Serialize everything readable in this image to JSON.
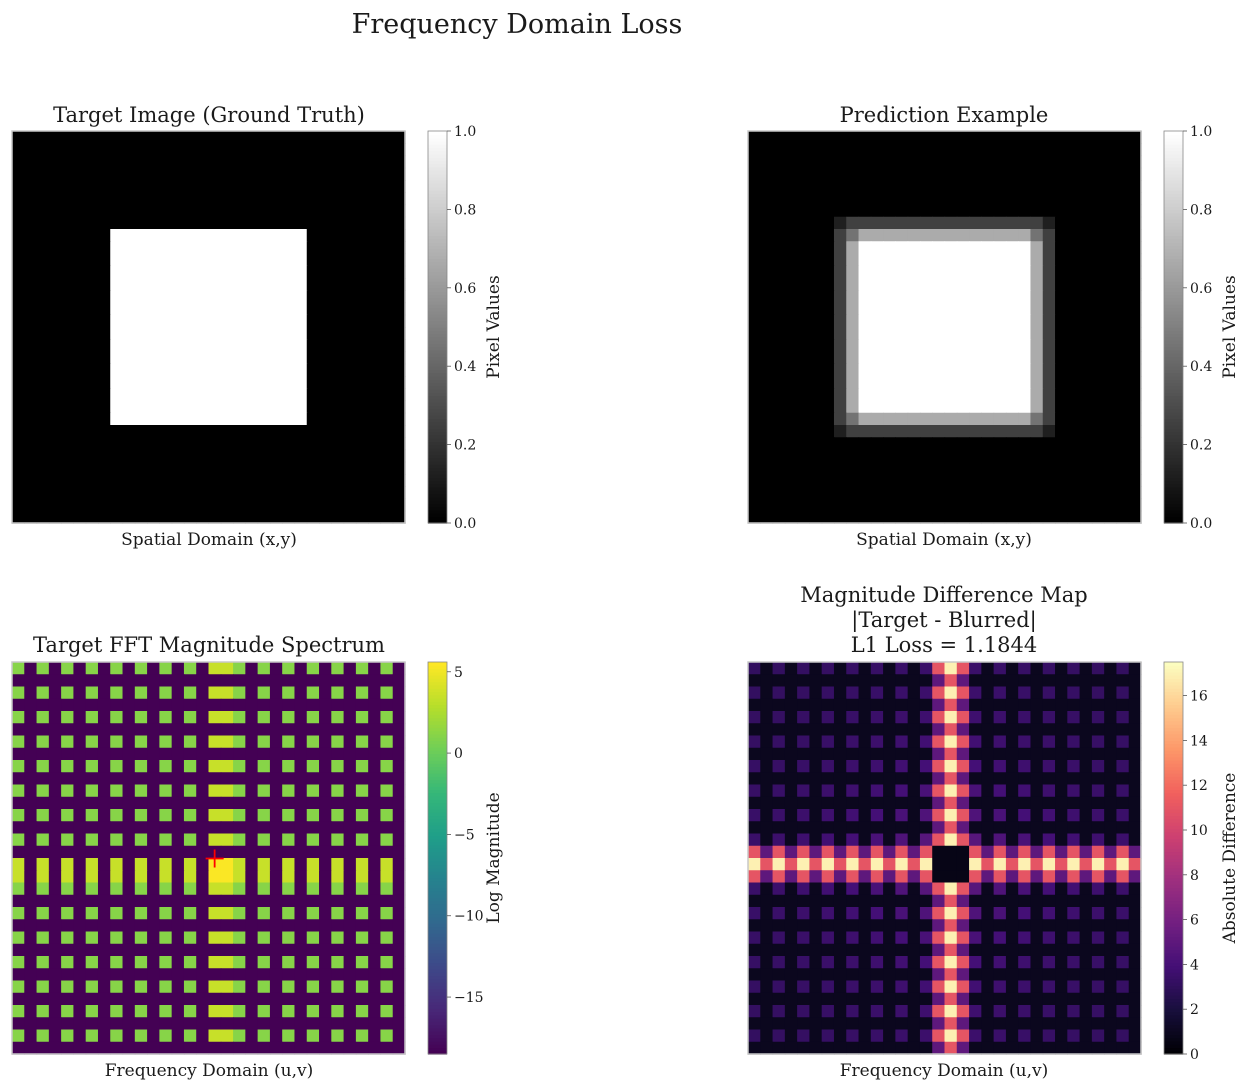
{
  "figure": {
    "title": "Frequency Domain Loss"
  },
  "chart_data": [
    {
      "type": "heatmap",
      "id": "target",
      "title": "Target Image (Ground Truth)",
      "xlabel": "Spatial Domain (x,y)",
      "colorbar": {
        "label": "Pixel Values",
        "cmap": "gray",
        "vmin": 0.0,
        "vmax": 1.0,
        "ticks": [
          "0.0",
          "0.2",
          "0.4",
          "0.6",
          "0.8",
          "1.0"
        ]
      },
      "grid_size": [
        32,
        32
      ],
      "square": {
        "row_start": 8,
        "row_end": 24,
        "col_start": 8,
        "col_end": 24,
        "value": 1.0
      },
      "background_value": 0.0
    },
    {
      "type": "heatmap",
      "id": "prediction",
      "title": "Prediction Example",
      "xlabel": "Spatial Domain (x,y)",
      "colorbar": {
        "label": "Pixel Values",
        "cmap": "gray",
        "vmin": 0.0,
        "vmax": 1.0,
        "ticks": [
          "0.0",
          "0.2",
          "0.4",
          "0.6",
          "0.8",
          "1.0"
        ]
      },
      "grid_size": [
        32,
        32
      ],
      "square": {
        "row_start": 7,
        "row_end": 25,
        "col_start": 7,
        "col_end": 25
      },
      "levels": {
        "center": 1.0,
        "edge": 0.67,
        "corner": 0.45,
        "outer_edge": 0.25,
        "outer_corner": 0.12
      }
    },
    {
      "type": "heatmap",
      "id": "fft",
      "title": "Target FFT Magnitude Spectrum",
      "xlabel": "Frequency Domain (u,v)",
      "colorbar": {
        "label": "Log Magnitude",
        "cmap": "viridis",
        "vmin": -18.5,
        "vmax": 5.6,
        "ticks": [
          "5",
          "0",
          "−5",
          "−10",
          "−15"
        ],
        "tick_values": [
          5,
          0,
          -5,
          -10,
          -15
        ]
      },
      "grid_size": [
        32,
        32
      ],
      "center_value": 5.5,
      "axis_value": 3.6,
      "cross_value": 1.2,
      "zero_value": -18.5,
      "marker": "+",
      "marker_color": "#ff0000"
    },
    {
      "type": "heatmap",
      "id": "difference",
      "title_lines": [
        "Magnitude Difference Map",
        "|Target - Blurred|",
        "L1 Loss = 1.1844"
      ],
      "xlabel": "Frequency Domain (u,v)",
      "colorbar": {
        "label": "Absolute Difference",
        "cmap": "magma",
        "vmin": 0,
        "vmax": 17.5,
        "ticks": [
          "0",
          "2",
          "4",
          "6",
          "8",
          "10",
          "12",
          "14",
          "16"
        ],
        "tick_values": [
          0,
          2,
          4,
          6,
          8,
          10,
          12,
          14,
          16
        ]
      },
      "grid_size": [
        32,
        32
      ],
      "l1_loss": 1.1844
    }
  ]
}
